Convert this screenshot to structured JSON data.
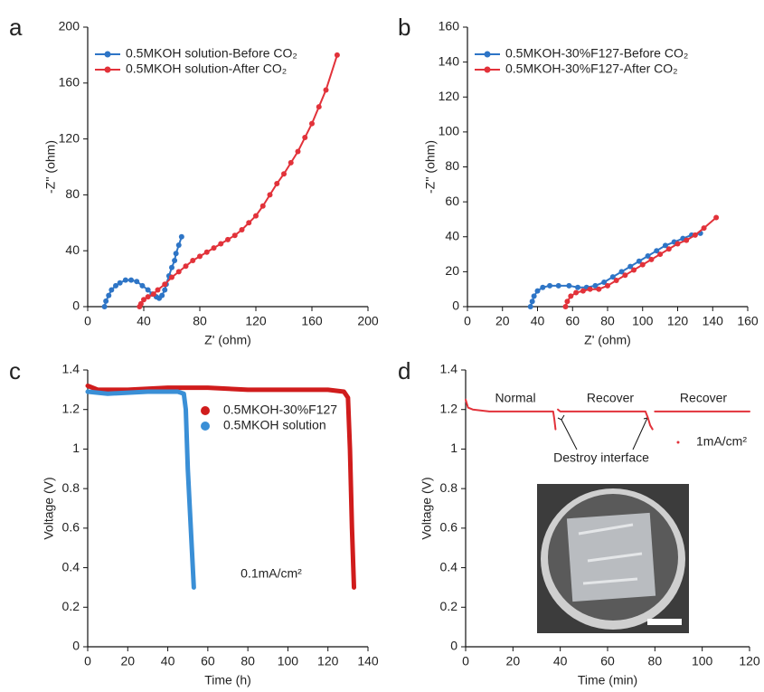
{
  "chart_data": [
    {
      "type": "line",
      "panel_label": "a",
      "x_label": "Z' (ohm)",
      "y_label": "-Z'' (ohm)",
      "xlim": [
        0,
        200
      ],
      "xticks": [
        0,
        40,
        80,
        120,
        160,
        200
      ],
      "ylim": [
        0,
        200
      ],
      "yticks": [
        0,
        40,
        80,
        120,
        160,
        200
      ],
      "markers": true,
      "legend": "upper left",
      "series": [
        {
          "name": "0.5MKOH solution-Before CO₂",
          "color": "#2e75c6",
          "x": [
            12,
            13,
            15,
            17,
            20,
            23,
            27,
            31,
            35,
            39,
            43,
            46,
            49,
            51,
            53,
            55,
            56,
            58,
            60,
            62,
            63,
            65,
            67
          ],
          "values": [
            0,
            4,
            8,
            12,
            15,
            17,
            19,
            19,
            18,
            15,
            12,
            9,
            7,
            6,
            8,
            12,
            16,
            22,
            28,
            33,
            38,
            44,
            50
          ]
        },
        {
          "name": "0.5MKOH solution-After CO₂",
          "color": "#e2323a",
          "x": [
            37,
            38,
            40,
            43,
            47,
            50,
            55,
            60,
            65,
            70,
            75,
            80,
            85,
            90,
            95,
            100,
            105,
            110,
            115,
            120,
            125,
            130,
            135,
            140,
            145,
            150,
            155,
            160,
            165,
            170,
            178
          ],
          "values": [
            0,
            2,
            5,
            7,
            9,
            12,
            16,
            21,
            25,
            29,
            33,
            36,
            39,
            42,
            45,
            48,
            51,
            55,
            60,
            65,
            72,
            80,
            88,
            95,
            103,
            111,
            121,
            131,
            143,
            155,
            180
          ]
        }
      ]
    },
    {
      "type": "line",
      "panel_label": "b",
      "x_label": "Z' (ohm)",
      "y_label": "-Z'' (ohm)",
      "xlim": [
        0,
        160
      ],
      "xticks": [
        0,
        20,
        40,
        60,
        80,
        100,
        120,
        140,
        160
      ],
      "ylim": [
        0,
        160
      ],
      "yticks": [
        0,
        20,
        40,
        60,
        80,
        100,
        120,
        140,
        160
      ],
      "markers": true,
      "legend": "upper left",
      "series": [
        {
          "name": "0.5MKOH-30%F127-Before CO₂",
          "color": "#2e75c6",
          "x": [
            36,
            37,
            38,
            40,
            43,
            47,
            52,
            58,
            63,
            68,
            73,
            78,
            83,
            88,
            93,
            98,
            103,
            108,
            113,
            118,
            123,
            128,
            133
          ],
          "values": [
            0,
            3,
            6,
            9,
            11,
            12,
            12,
            12,
            11,
            11,
            12,
            14,
            17,
            20,
            23,
            26,
            29,
            32,
            35,
            37,
            39,
            41,
            42
          ]
        },
        {
          "name": "0.5MKOH-30%F127-After CO₂",
          "color": "#e2323a",
          "x": [
            56,
            57,
            59,
            62,
            66,
            70,
            75,
            80,
            85,
            90,
            95,
            100,
            105,
            110,
            115,
            120,
            125,
            130,
            135,
            142
          ],
          "values": [
            0,
            3,
            6,
            8,
            9,
            10,
            10,
            12,
            15,
            18,
            21,
            24,
            27,
            30,
            33,
            36,
            38,
            41,
            45,
            51
          ]
        }
      ]
    },
    {
      "type": "line",
      "panel_label": "c",
      "x_label": "Time (h)",
      "y_label": "Voltage (V)",
      "xlim": [
        0,
        140
      ],
      "xticks": [
        0,
        20,
        40,
        60,
        80,
        100,
        120,
        140
      ],
      "ylim": [
        0,
        1.4
      ],
      "yticks": [
        0,
        0.2,
        0.4,
        0.6,
        0.8,
        1,
        1.2,
        1.4
      ],
      "markers": false,
      "legend": "center right",
      "annotations": [
        "0.1mA/cm²"
      ],
      "series": [
        {
          "name": "0.5MKOH-30%F127",
          "color": "#d01c1c",
          "x": [
            0,
            5,
            20,
            40,
            60,
            80,
            100,
            120,
            128,
            130,
            131,
            132,
            133
          ],
          "values": [
            1.32,
            1.3,
            1.3,
            1.31,
            1.31,
            1.3,
            1.3,
            1.3,
            1.29,
            1.26,
            1.0,
            0.6,
            0.3
          ]
        },
        {
          "name": "0.5MKOH solution",
          "color": "#3a8fd6",
          "x": [
            0,
            10,
            30,
            45,
            48,
            49,
            50,
            52,
            53
          ],
          "values": [
            1.29,
            1.28,
            1.29,
            1.29,
            1.28,
            1.2,
            0.9,
            0.5,
            0.3
          ]
        }
      ]
    },
    {
      "type": "line",
      "panel_label": "d",
      "x_label": "Time (min)",
      "y_label": "Voltage (V)",
      "xlim": [
        0,
        120
      ],
      "xticks": [
        0,
        20,
        40,
        60,
        80,
        100,
        120
      ],
      "ylim": [
        0,
        1.4
      ],
      "yticks": [
        0,
        0.2,
        0.4,
        0.6,
        0.8,
        1,
        1.2,
        1.4
      ],
      "markers": false,
      "legend": "right",
      "annotations": [
        "Normal",
        "Recover",
        "Recover",
        "Destroy interface"
      ],
      "series": [
        {
          "name": "1mA/cm²",
          "color": "#e2323a",
          "x": [
            0,
            1,
            3,
            10,
            20,
            30,
            37,
            37.5,
            38,
            38.5,
            39,
            40,
            60,
            76,
            77,
            78,
            79,
            79.5,
            80,
            100,
            120
          ],
          "values": [
            1.25,
            1.21,
            1.2,
            1.19,
            1.19,
            1.19,
            1.19,
            1.15,
            1.1,
            null,
            1.2,
            1.19,
            1.19,
            1.19,
            1.16,
            1.12,
            1.1,
            null,
            1.19,
            1.19,
            1.19
          ]
        }
      ]
    }
  ]
}
